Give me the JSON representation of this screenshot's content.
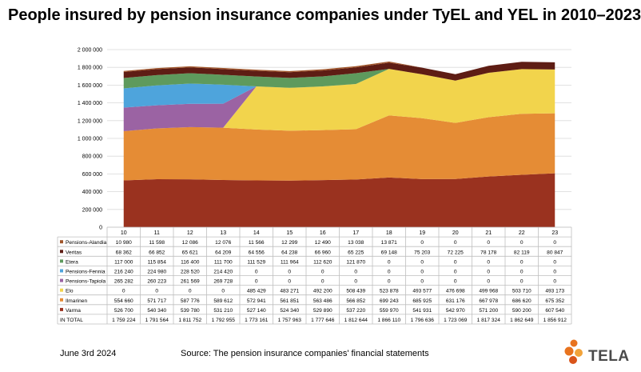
{
  "title": "People insured by pension insurance companies under TyEL and YEL in 2010–2023",
  "footer": {
    "date": "June 3rd 2024",
    "source": "Source: The pension insurance companies' financial statements"
  },
  "logo": {
    "text": "TELA"
  },
  "chart_data": {
    "type": "area",
    "stacked": true,
    "categories": [
      "10",
      "11",
      "12",
      "13",
      "14",
      "15",
      "16",
      "17",
      "18",
      "19",
      "20",
      "21",
      "22",
      "23"
    ],
    "y_ticks": [
      "0",
      "200 000",
      "400 000",
      "600 000",
      "800 000",
      "1 000 000",
      "1 200 000",
      "1 400 000",
      "1 600 000",
      "1 800 000",
      "2 000 000"
    ],
    "ylim": [
      0,
      2000000
    ],
    "grid": true,
    "legend": "table-below",
    "series": [
      {
        "name": "Varma",
        "color": "#9a321f",
        "values": [
          526700,
          540340,
          539780,
          531210,
          527140,
          524340,
          529890,
          537220,
          559970,
          541931,
          542970,
          571200,
          590200,
          607540
        ],
        "labels": [
          "526 700",
          "540 340",
          "539 780",
          "531 210",
          "527 140",
          "524 340",
          "529 890",
          "537 220",
          "559 970",
          "541 931",
          "542 970",
          "571 200",
          "590 200",
          "607 540"
        ]
      },
      {
        "name": "Ilmarinen",
        "color": "#e58c35",
        "values": [
          554660,
          571717,
          587776,
          589612,
          572941,
          561851,
          563486,
          566852,
          699243,
          685925,
          631176,
          667978,
          686620,
          675352
        ],
        "labels": [
          "554 660",
          "571 717",
          "587 776",
          "589 612",
          "572 941",
          "561 851",
          "563 486",
          "566 852",
          "699 243",
          "685 925",
          "631 176",
          "667 978",
          "686 620",
          "675 352"
        ]
      },
      {
        "name": "Elo",
        "color": "#f2d44c",
        "values": [
          0,
          0,
          0,
          0,
          485429,
          483271,
          492200,
          508439,
          523878,
          493577,
          476698,
          499968,
          503710,
          493173
        ],
        "labels": [
          "0",
          "0",
          "0",
          "0",
          "485 429",
          "483 271",
          "492 200",
          "508 439",
          "523 878",
          "493 577",
          "476 698",
          "499 968",
          "503 710",
          "493 173"
        ]
      },
      {
        "name": "Pensions-Tapiola",
        "color": "#9b63a3",
        "values": [
          265282,
          260223,
          261569,
          269728,
          0,
          0,
          0,
          0,
          0,
          0,
          0,
          0,
          0,
          0
        ],
        "labels": [
          "265 282",
          "260 223",
          "261 569",
          "269 728",
          "0",
          "0",
          "0",
          "0",
          "0",
          "0",
          "0",
          "0",
          "0",
          "0"
        ]
      },
      {
        "name": "Pensions-Fennia",
        "color": "#4ea4dc",
        "values": [
          216240,
          224980,
          228520,
          214420,
          0,
          0,
          0,
          0,
          0,
          0,
          0,
          0,
          0,
          0
        ],
        "labels": [
          "216 240",
          "224 980",
          "228 520",
          "214 420",
          "0",
          "0",
          "0",
          "0",
          "0",
          "0",
          "0",
          "0",
          "0",
          "0"
        ]
      },
      {
        "name": "Etera",
        "color": "#5e9a5d",
        "values": [
          117000,
          115854,
          116400,
          111700,
          111529,
          111964,
          112620,
          121870,
          0,
          0,
          0,
          0,
          0,
          0
        ],
        "labels": [
          "117 000",
          "115 854",
          "116 400",
          "111 700",
          "111 529",
          "111 964",
          "112 620",
          "121 870",
          "0",
          "0",
          "0",
          "0",
          "0",
          "0"
        ]
      },
      {
        "name": "Veritas",
        "color": "#5e1d14",
        "values": [
          68362,
          66852,
          65621,
          64209,
          64556,
          64238,
          66960,
          65225,
          69148,
          75203,
          72225,
          78178,
          82119,
          80847
        ],
        "labels": [
          "68 362",
          "66 852",
          "65 621",
          "64 209",
          "64 556",
          "64 238",
          "66 960",
          "65 225",
          "69 148",
          "75 203",
          "72 225",
          "78 178",
          "82 119",
          "80 847"
        ]
      },
      {
        "name": "Pensions-Alandia",
        "color": "#a0552a",
        "values": [
          10980,
          11598,
          12086,
          12076,
          11566,
          12299,
          12490,
          13038,
          13871,
          0,
          0,
          0,
          0,
          0
        ],
        "labels": [
          "10 980",
          "11 598",
          "12 086",
          "12 076",
          "11 566",
          "12 299",
          "12 490",
          "13 038",
          "13 871",
          "0",
          "0",
          "0",
          "0",
          "0"
        ]
      }
    ],
    "table_order": [
      "Pensions-Alandia",
      "Veritas",
      "Etera",
      "Pensions-Fennia",
      "Pensions-Tapiola",
      "Elo",
      "Ilmarinen",
      "Varma"
    ],
    "total": {
      "name": "IN TOTAL",
      "labels": [
        "1 759 224",
        "1 791 564",
        "1 811 752",
        "1 792 955",
        "1 773 161",
        "1 757 963",
        "1 777 646",
        "1 812 644",
        "1 866 110",
        "1 796 636",
        "1 723 069",
        "1 817 324",
        "1 862 649",
        "1 856 912"
      ]
    }
  }
}
